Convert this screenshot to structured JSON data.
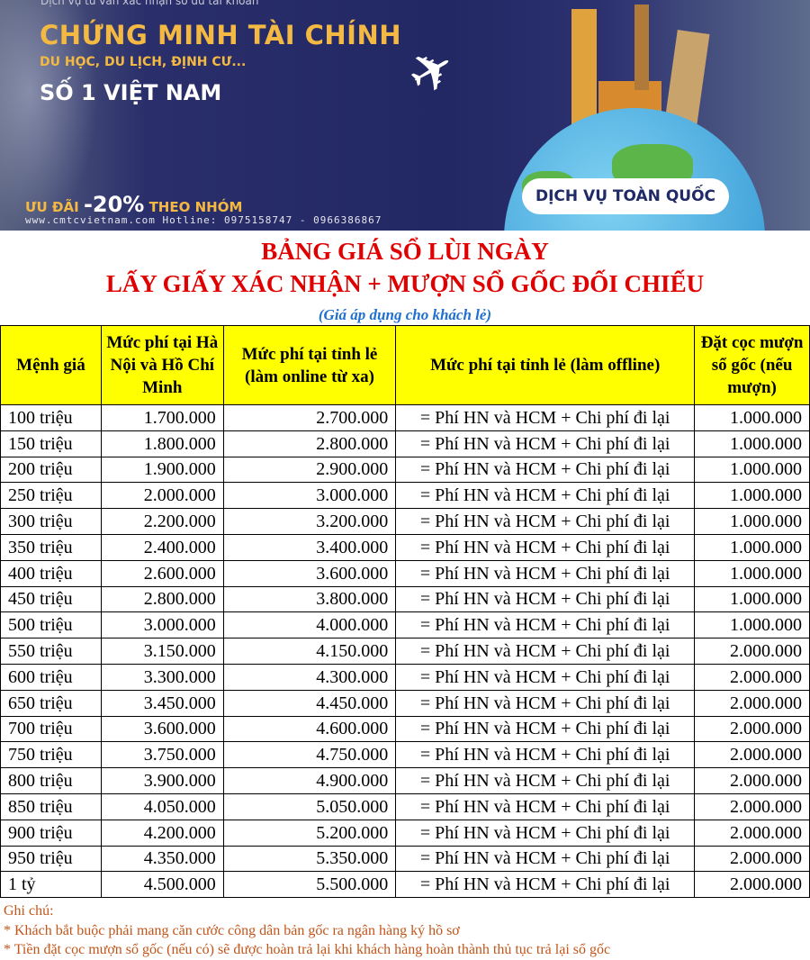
{
  "banner": {
    "top_text": "Dịch vụ tư vấn xác nhận số dư tài khoản",
    "title": "CHỨNG MINH TÀI CHÍNH",
    "subtitle": "DU HỌC, DU LỊCH, ĐỊNH CƯ...",
    "rank": "SỐ 1 VIỆT NAM",
    "promo_prefix": "ƯU ĐÃI",
    "promo_value": "-20%",
    "promo_suffix": "THEO NHÓM",
    "contact": "www.cmtcvietnam.com  Hotline: 0975158747 - 0966386867",
    "badge": "DỊCH VỤ TOÀN QUỐC"
  },
  "heading": {
    "line1": "BẢNG GIÁ SỔ LÙI NGÀY",
    "line2": "LẤY GIẤY XÁC NHẬN + MƯỢN SỔ GỐC ĐỐI CHIẾU",
    "note": "(Giá áp dụng cho khách lẻ)"
  },
  "table": {
    "headers": [
      "Mệnh giá",
      "Mức phí tại Hà Nội và Hồ Chí Minh",
      "Mức phí tại tỉnh lẻ (làm online từ xa)",
      "Mức phí tại tỉnh lẻ (làm offline)",
      "Đặt cọc mượn sổ gốc (nếu mượn)"
    ],
    "rows": [
      [
        "100 triệu",
        "1.700.000",
        "2.700.000",
        "= Phí HN và HCM + Chi phí đi lại",
        "1.000.000"
      ],
      [
        "150 triệu",
        "1.800.000",
        "2.800.000",
        "= Phí HN và HCM + Chi phí đi lại",
        "1.000.000"
      ],
      [
        "200 triệu",
        "1.900.000",
        "2.900.000",
        "= Phí HN và HCM + Chi phí đi lại",
        "1.000.000"
      ],
      [
        "250 triệu",
        "2.000.000",
        "3.000.000",
        "= Phí HN và HCM + Chi phí đi lại",
        "1.000.000"
      ],
      [
        "300 triệu",
        "2.200.000",
        "3.200.000",
        "= Phí HN và HCM + Chi phí đi lại",
        "1.000.000"
      ],
      [
        "350 triệu",
        "2.400.000",
        "3.400.000",
        "= Phí HN và HCM + Chi phí đi lại",
        "1.000.000"
      ],
      [
        "400 triệu",
        "2.600.000",
        "3.600.000",
        "= Phí HN và HCM + Chi phí đi lại",
        "1.000.000"
      ],
      [
        "450 triệu",
        "2.800.000",
        "3.800.000",
        "= Phí HN và HCM + Chi phí đi lại",
        "1.000.000"
      ],
      [
        "500 triệu",
        "3.000.000",
        "4.000.000",
        "= Phí HN và HCM + Chi phí đi lại",
        "1.000.000"
      ],
      [
        "550 triệu",
        "3.150.000",
        "4.150.000",
        "= Phí HN và HCM + Chi phí đi lại",
        "2.000.000"
      ],
      [
        "600 triệu",
        "3.300.000",
        "4.300.000",
        "= Phí HN và HCM + Chi phí đi lại",
        "2.000.000"
      ],
      [
        "650 triệu",
        "3.450.000",
        "4.450.000",
        "= Phí HN và HCM + Chi phí đi lại",
        "2.000.000"
      ],
      [
        "700 triệu",
        "3.600.000",
        "4.600.000",
        "= Phí HN và HCM + Chi phí đi lại",
        "2.000.000"
      ],
      [
        "750 triệu",
        "3.750.000",
        "4.750.000",
        "= Phí HN và HCM + Chi phí đi lại",
        "2.000.000"
      ],
      [
        "800 triệu",
        "3.900.000",
        "4.900.000",
        "= Phí HN và HCM + Chi phí đi lại",
        "2.000.000"
      ],
      [
        "850 triệu",
        "4.050.000",
        "5.050.000",
        "= Phí HN và HCM + Chi phí đi lại",
        "2.000.000"
      ],
      [
        "900 triệu",
        "4.200.000",
        "5.200.000",
        "= Phí HN và HCM + Chi phí đi lại",
        "2.000.000"
      ],
      [
        "950 triệu",
        "4.350.000",
        "5.350.000",
        "= Phí HN và HCM + Chi phí đi lại",
        "2.000.000"
      ],
      [
        "1 tỷ",
        "4.500.000",
        "5.500.000",
        "= Phí HN và HCM + Chi phí đi lại",
        "2.000.000"
      ]
    ]
  },
  "notes": {
    "title": "Ghi chú:",
    "items": [
      "* Khách bắt buộc phải mang  căn cước công dân bản gốc ra ngân hàng ký hồ sơ",
      "* Tiền đặt cọc mượn sổ gốc (nếu có) sẽ được hoàn trả lại khi khách hàng hoàn thành thủ tục trả lại sổ gốc"
    ]
  }
}
